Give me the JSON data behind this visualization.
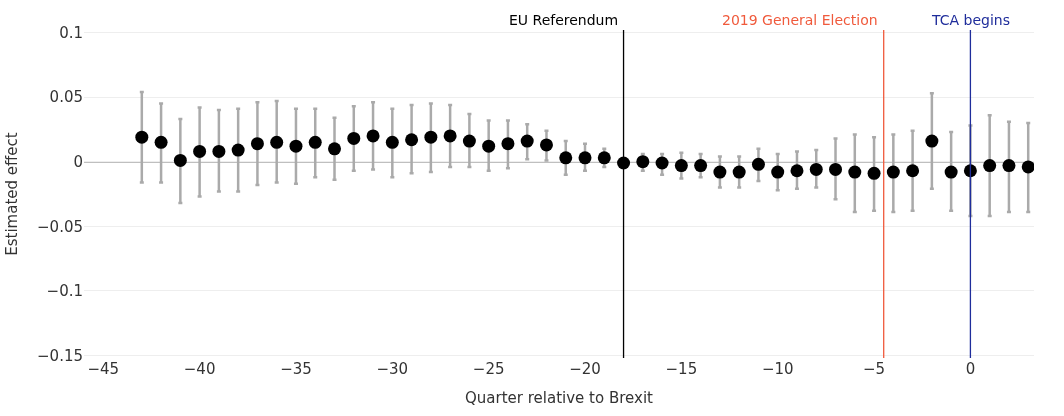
{
  "chart_data": {
    "type": "scatter",
    "xlabel": "Quarter relative to Brexit",
    "ylabel": "Estimated effect",
    "x": [
      -43,
      -42,
      -41,
      -40,
      -39,
      -38,
      -37,
      -36,
      -35,
      -34,
      -33,
      -32,
      -31,
      -30,
      -29,
      -28,
      -27,
      -26,
      -25,
      -24,
      -23,
      -22,
      -21,
      -20,
      -19,
      -18,
      -17,
      -16,
      -15,
      -14,
      -13,
      -12,
      -11,
      -10,
      -9,
      -8,
      -7,
      -6,
      -5,
      -4,
      -3,
      -2,
      -1,
      0,
      1,
      2,
      3
    ],
    "series": [
      {
        "color": "#000000",
        "values": [
          0.019,
          0.015,
          0.001,
          0.008,
          0.008,
          0.009,
          0.014,
          0.015,
          0.012,
          0.015,
          0.01,
          0.018,
          0.02,
          0.015,
          0.017,
          0.019,
          0.02,
          0.016,
          0.012,
          0.014,
          0.016,
          0.013,
          0.003,
          0.003,
          0.003,
          -0.001,
          0.0,
          -0.001,
          -0.003,
          -0.003,
          -0.008,
          -0.008,
          -0.002,
          -0.008,
          -0.007,
          -0.006,
          -0.006,
          -0.008,
          -0.009,
          -0.008,
          -0.007,
          0.016,
          -0.008,
          -0.007,
          -0.003,
          -0.003,
          -0.004
        ],
        "errors": [
          [
            -0.016,
            0.054
          ],
          [
            -0.016,
            0.045
          ],
          [
            -0.032,
            0.033
          ],
          [
            -0.027,
            0.042
          ],
          [
            -0.023,
            0.04
          ],
          [
            -0.023,
            0.041
          ],
          [
            -0.018,
            0.046
          ],
          [
            -0.016,
            0.047
          ],
          [
            -0.017,
            0.041
          ],
          [
            -0.012,
            0.041
          ],
          [
            -0.014,
            0.034
          ],
          [
            -0.007,
            0.043
          ],
          [
            -0.006,
            0.046
          ],
          [
            -0.012,
            0.041
          ],
          [
            -0.009,
            0.044
          ],
          [
            -0.008,
            0.045
          ],
          [
            -0.004,
            0.044
          ],
          [
            -0.004,
            0.037
          ],
          [
            -0.007,
            0.032
          ],
          [
            -0.005,
            0.032
          ],
          [
            0.002,
            0.029
          ],
          [
            0.001,
            0.024
          ],
          [
            -0.01,
            0.016
          ],
          [
            -0.007,
            0.014
          ],
          [
            -0.004,
            0.01
          ],
          [
            -0.003,
            0.002
          ],
          [
            -0.007,
            0.006
          ],
          [
            -0.01,
            0.006
          ],
          [
            -0.013,
            0.007
          ],
          [
            -0.012,
            0.006
          ],
          [
            -0.02,
            0.004
          ],
          [
            -0.02,
            0.004
          ],
          [
            -0.015,
            0.01
          ],
          [
            -0.022,
            0.006
          ],
          [
            -0.021,
            0.008
          ],
          [
            -0.02,
            0.009
          ],
          [
            -0.029,
            0.018
          ],
          [
            -0.039,
            0.021
          ],
          [
            -0.038,
            0.019
          ],
          [
            -0.039,
            0.021
          ],
          [
            -0.038,
            0.024
          ],
          [
            -0.021,
            0.053
          ],
          [
            -0.038,
            0.023
          ],
          [
            -0.042,
            0.028
          ],
          [
            -0.042,
            0.036
          ],
          [
            -0.039,
            0.031
          ],
          [
            -0.039,
            0.03
          ]
        ]
      }
    ],
    "xlim": [
      -46,
      3.3
    ],
    "ylim": [
      -0.152,
      0.102
    ],
    "yticks": [
      {
        "value": 0.1,
        "label": "0.1"
      },
      {
        "value": 0.05,
        "label": "0.05"
      },
      {
        "value": 0,
        "label": "0"
      },
      {
        "value": -0.05,
        "label": "−0.05"
      },
      {
        "value": -0.1,
        "label": "−0.1"
      },
      {
        "value": -0.15,
        "label": "−0.15"
      }
    ],
    "xticks": [
      {
        "value": -45,
        "label": "−45"
      },
      {
        "value": -40,
        "label": "−40"
      },
      {
        "value": -35,
        "label": "−35"
      },
      {
        "value": -30,
        "label": "−30"
      },
      {
        "value": -25,
        "label": "−25"
      },
      {
        "value": -20,
        "label": "−20"
      },
      {
        "value": -15,
        "label": "−15"
      },
      {
        "value": -10,
        "label": "−10"
      },
      {
        "value": -5,
        "label": "−5"
      },
      0
    ],
    "grid": "y",
    "marker": "circle",
    "ref_lines": [
      {
        "axis": "y",
        "value": 0,
        "color": "#000000"
      },
      {
        "axis": "x",
        "value": -18,
        "label": "EU Referendum",
        "color": "#000000"
      },
      {
        "axis": "x",
        "value": -4.5,
        "label": "2019 General Election",
        "color": "#f05a3c"
      },
      {
        "axis": "x",
        "value": 0,
        "label": "TCA begins",
        "color": "#1f2d9b"
      }
    ]
  }
}
